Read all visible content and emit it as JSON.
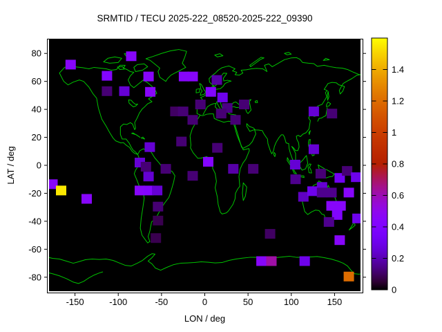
{
  "title": "SRMTID / TECU 2025-222_08520-2025-222_09390",
  "chart_data": {
    "type": "heatmap",
    "title": "SRMTID / TECU 2025-222_08520-2025-222_09390",
    "xlabel": "LON / deg",
    "ylabel": "LAT / deg",
    "xlim": [
      -180,
      180
    ],
    "ylim": [
      -90,
      90
    ],
    "x_ticks": [
      -150,
      -100,
      -50,
      0,
      50,
      100,
      150
    ],
    "y_ticks": [
      -80,
      -60,
      -40,
      -20,
      0,
      20,
      40,
      60,
      80
    ],
    "grid": false,
    "legend_position": "right-colorbar",
    "colors": {
      "background": "#000000",
      "coastline": "#00c400",
      "frame": "#000000",
      "page": "#ffffff"
    },
    "colorbar": {
      "min": 0,
      "max": 1.6,
      "ticks": [
        0,
        0.2,
        0.4,
        0.6,
        0.8,
        1,
        1.2,
        1.4
      ],
      "palette": "gnuplot-pm3d black-violet-magenta-red-orange-yellow"
    },
    "cell_size_deg": {
      "lon": 12,
      "lat": 7
    },
    "points": [
      {
        "lon": -85,
        "lat": 78,
        "v": 0.45
      },
      {
        "lon": -155,
        "lat": 72,
        "v": 0.45
      },
      {
        "lon": -113,
        "lat": 64,
        "v": 0.42
      },
      {
        "lon": -65,
        "lat": 63.5,
        "v": 0.45
      },
      {
        "lon": -24,
        "lat": 63.5,
        "v": 0.45
      },
      {
        "lon": -14,
        "lat": 63.5,
        "v": 0.45
      },
      {
        "lon": -113,
        "lat": 53,
        "v": 0.12
      },
      {
        "lon": -93,
        "lat": 53,
        "v": 0.25
      },
      {
        "lon": -63,
        "lat": 52.5,
        "v": 0.45
      },
      {
        "lon": -34,
        "lat": 38.5,
        "v": 0.1
      },
      {
        "lon": -25,
        "lat": 38.5,
        "v": 0.12
      },
      {
        "lon": -5,
        "lat": 43.5,
        "v": 0.12
      },
      {
        "lon": -14,
        "lat": 32.5,
        "v": 0.12
      },
      {
        "lon": -27,
        "lat": 17,
        "v": 0.12
      },
      {
        "lon": -63.5,
        "lat": 13,
        "v": 0.25
      },
      {
        "lon": -75,
        "lat": 2,
        "v": 0.25
      },
      {
        "lon": -68,
        "lat": -1,
        "v": 0.12
      },
      {
        "lon": -45,
        "lat": -2.5,
        "v": 0.12
      },
      {
        "lon": -65,
        "lat": -8,
        "v": 0.25
      },
      {
        "lon": -14,
        "lat": -7.5,
        "v": 0.12
      },
      {
        "lon": -176,
        "lat": -13.5,
        "v": 0.45
      },
      {
        "lon": -166,
        "lat": -18,
        "v": 1.55
      },
      {
        "lon": -136.5,
        "lat": -24,
        "v": 0.45
      },
      {
        "lon": -75,
        "lat": -18,
        "v": 0.45
      },
      {
        "lon": -65,
        "lat": -18,
        "v": 0.42
      },
      {
        "lon": -55,
        "lat": -18,
        "v": 0.25
      },
      {
        "lon": -54,
        "lat": -29.5,
        "v": 0.12
      },
      {
        "lon": -54,
        "lat": -39.5,
        "v": 0.08
      },
      {
        "lon": -56.5,
        "lat": -52,
        "v": 0.08
      },
      {
        "lon": 14,
        "lat": 61,
        "v": 0.18
      },
      {
        "lon": 7,
        "lat": 52.5,
        "v": 0.42
      },
      {
        "lon": 20.5,
        "lat": 48.5,
        "v": 0.3
      },
      {
        "lon": 26,
        "lat": 41,
        "v": 0.14
      },
      {
        "lon": 19,
        "lat": 37,
        "v": 0.12
      },
      {
        "lon": 35.5,
        "lat": 32.5,
        "v": 0.12
      },
      {
        "lon": 45.5,
        "lat": 43.5,
        "v": 0.12
      },
      {
        "lon": 126,
        "lat": 38.5,
        "v": 0.25
      },
      {
        "lon": 147,
        "lat": 37,
        "v": 0.12
      },
      {
        "lon": 14.5,
        "lat": 12.5,
        "v": 0.12
      },
      {
        "lon": 126,
        "lat": 11.5,
        "v": 0.25
      },
      {
        "lon": 4,
        "lat": 2.5,
        "v": 0.42
      },
      {
        "lon": 33,
        "lat": -2.5,
        "v": 0.18
      },
      {
        "lon": 56,
        "lat": -2.5,
        "v": 0.12
      },
      {
        "lon": 104.5,
        "lat": 0.5,
        "v": 0.25
      },
      {
        "lon": 105,
        "lat": -10,
        "v": 0.15
      },
      {
        "lon": 134,
        "lat": -6,
        "v": 0.12
      },
      {
        "lon": 135.5,
        "lat": -15.5,
        "v": 0.25
      },
      {
        "lon": 156,
        "lat": -9,
        "v": 0.32
      },
      {
        "lon": 164.5,
        "lat": -4,
        "v": 0.12
      },
      {
        "lon": 175,
        "lat": -8.5,
        "v": 0.3
      },
      {
        "lon": 114,
        "lat": -22.5,
        "v": 0.22
      },
      {
        "lon": 124.5,
        "lat": -18.5,
        "v": 0.3
      },
      {
        "lon": 135.5,
        "lat": -19.5,
        "v": 0.15
      },
      {
        "lon": 146.5,
        "lat": -19.5,
        "v": 0.15
      },
      {
        "lon": 166.5,
        "lat": -19.5,
        "v": 0.45
      },
      {
        "lon": 146.5,
        "lat": -29,
        "v": 0.45
      },
      {
        "lon": 157,
        "lat": -29,
        "v": 0.45
      },
      {
        "lon": 153,
        "lat": -35.5,
        "v": 0.4
      },
      {
        "lon": 143.5,
        "lat": -40.5,
        "v": 0.15
      },
      {
        "lon": 176.5,
        "lat": -38,
        "v": 0.3
      },
      {
        "lon": 75.5,
        "lat": -49,
        "v": 0.1
      },
      {
        "lon": 156,
        "lat": -53.5,
        "v": 0.45
      },
      {
        "lon": 65.5,
        "lat": -68.5,
        "v": 0.45
      },
      {
        "lon": 77,
        "lat": -68.5,
        "v": 0.62
      },
      {
        "lon": 115.5,
        "lat": -68.5,
        "v": 0.3
      },
      {
        "lon": 166.5,
        "lat": -79.5,
        "v": 1.2
      }
    ]
  }
}
